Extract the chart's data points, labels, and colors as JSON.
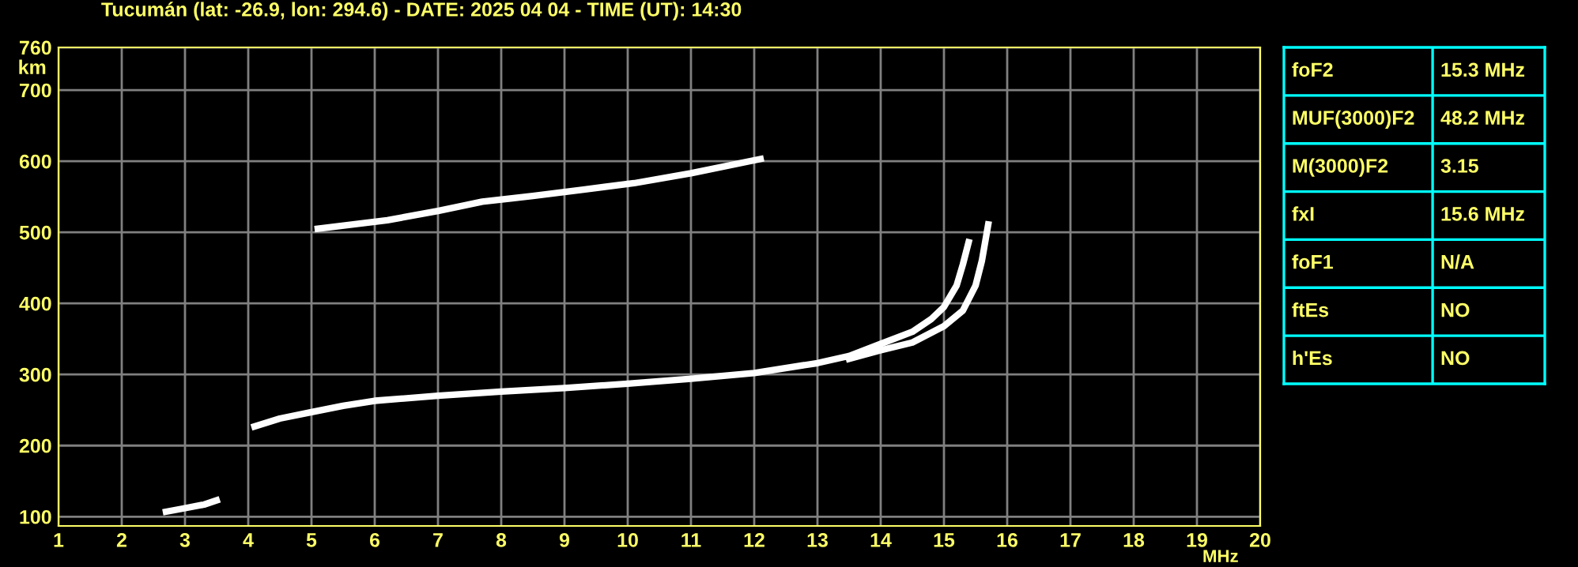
{
  "chart_data": [
    {
      "type": "line",
      "title": "Tucumán (lat: -26.9, lon: 294.6) - DATE: 2025 04 04 - TIME (UT): 14:30",
      "xlabel": "MHz",
      "ylabel": "km",
      "xlim": [
        1,
        20
      ],
      "ylim": [
        87,
        760
      ],
      "xticks": [
        1,
        2,
        3,
        4,
        5,
        6,
        7,
        8,
        9,
        10,
        11,
        12,
        13,
        14,
        15,
        16,
        17,
        18,
        19,
        20
      ],
      "yticks": [
        100,
        200,
        300,
        400,
        500,
        600,
        700,
        760
      ],
      "grid": true,
      "marker": "none",
      "line_style": "solid",
      "series": [
        {
          "color": "#ffffff",
          "x": [
            4.1,
            4.5,
            5,
            5.5,
            6,
            7,
            8,
            9,
            10,
            11,
            12,
            13,
            13.5,
            14,
            14.5,
            14.8,
            15,
            15.2,
            15.3,
            15.39
          ],
          "values": [
            227,
            238,
            247,
            256,
            263,
            270,
            276,
            281,
            287,
            294,
            302,
            316,
            326,
            343,
            360,
            378,
            395,
            425,
            455,
            486
          ]
        },
        {
          "color": "#ffffff",
          "x": [
            13.5,
            14,
            14.5,
            15,
            15.3,
            15.5,
            15.6,
            15.7
          ],
          "values": [
            322,
            334,
            345,
            368,
            390,
            425,
            460,
            511
          ]
        },
        {
          "color": "#ffffff",
          "x": [
            5.1,
            6.2,
            7.0,
            7.7,
            8.5,
            9.3,
            10.1,
            11,
            12.1
          ],
          "values": [
            505,
            517,
            530,
            543,
            551,
            560,
            569,
            583,
            603
          ]
        },
        {
          "color": "#ffffff",
          "x": [
            2.7,
            3.0,
            3.3,
            3.5
          ],
          "values": [
            107,
            112,
            117,
            123
          ]
        }
      ]
    },
    {
      "type": "other",
      "annotations": [
        "foF2",
        "15.3 MHz",
        "MUF(3000)F2",
        "48.2 MHz",
        "M(3000)F2",
        "3.15",
        "fxI",
        "15.6 MHz",
        "foF1",
        "N/A",
        "ftEs",
        "NO",
        "h'Es",
        "NO"
      ]
    }
  ]
}
